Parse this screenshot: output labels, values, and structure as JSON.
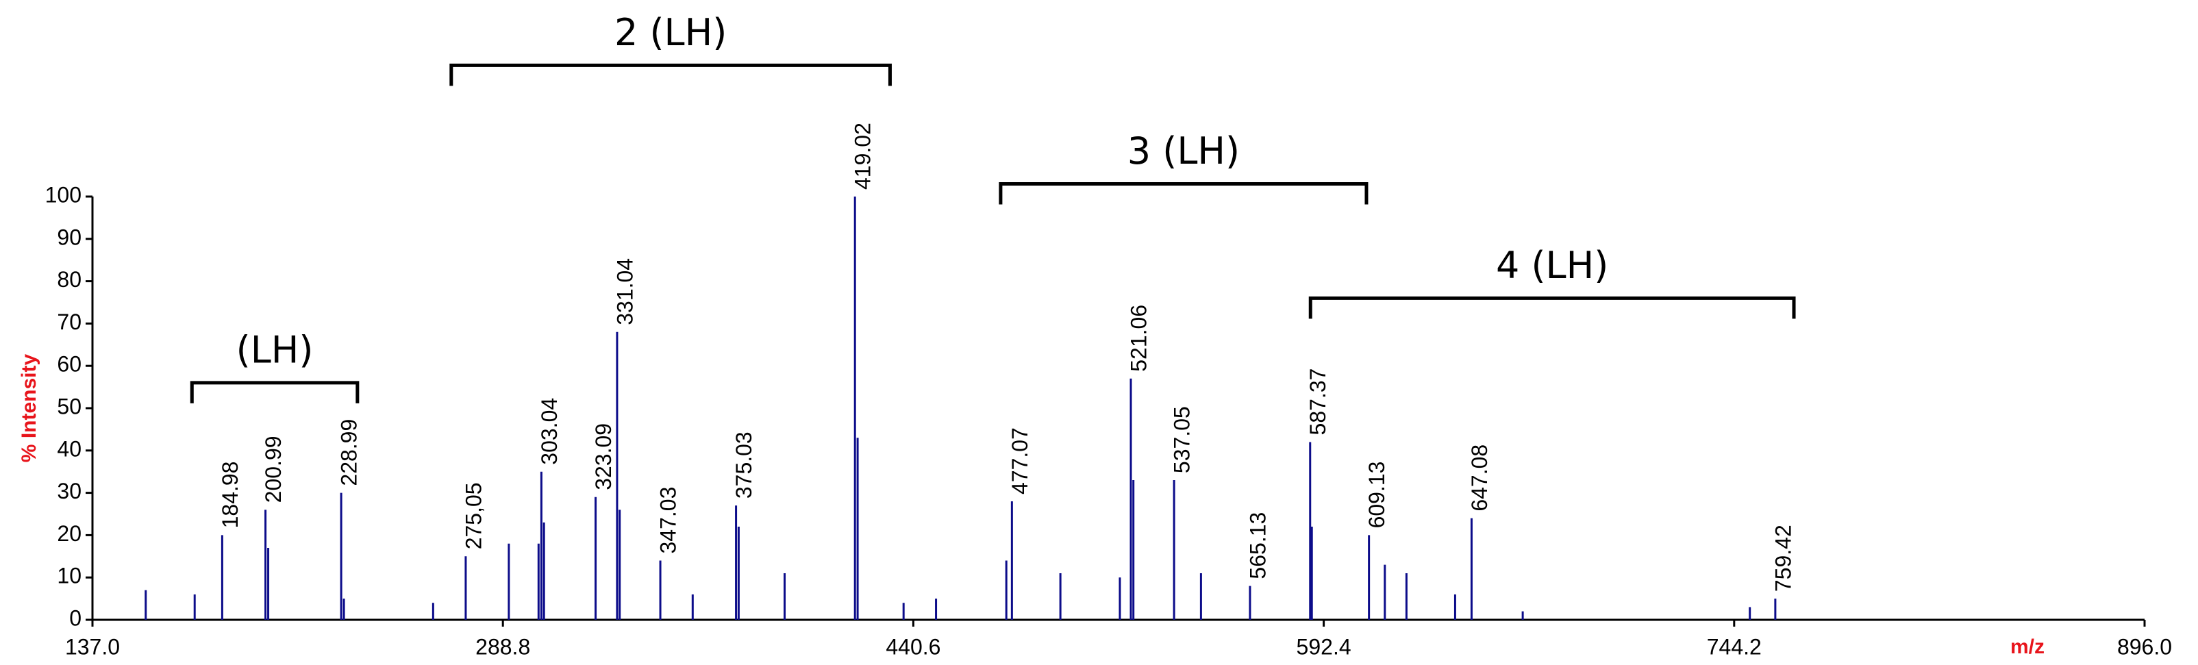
{
  "chart_data": {
    "type": "spectrum",
    "x_label": "m/z",
    "y_label": "% Intensity",
    "color": "#0c0c8a",
    "axis_label_color": "#e8141b",
    "grid": false,
    "xlim": [
      137.0,
      896.0
    ],
    "ylim": [
      0,
      100
    ],
    "xticks": [
      {
        "value": 137.0,
        "label": "137.0"
      },
      288.8,
      440.6,
      592.4,
      744.2,
      {
        "value": 896.0,
        "label": "896.0"
      }
    ],
    "yticks": [
      0,
      10,
      20,
      30,
      40,
      50,
      60,
      70,
      80,
      90,
      100
    ],
    "x": [
      156.7,
      174.8,
      184.98,
      200.99,
      202.0,
      228.99,
      230.0,
      263.0,
      275.05,
      291.0,
      302.0,
      303.04,
      304.0,
      323.09,
      331.04,
      332.0,
      347.03,
      359.0,
      375.03,
      376.0,
      393.0,
      419.02,
      420.0,
      437.0,
      449.0,
      475.0,
      477.07,
      495.0,
      517.0,
      521.06,
      522.0,
      537.05,
      547.0,
      565.13,
      587.37,
      588.0,
      609.13,
      615.0,
      623.0,
      641.0,
      647.08,
      666.0,
      750.0,
      759.42
    ],
    "values": [
      7,
      6,
      20,
      26,
      17,
      30,
      5,
      4,
      15,
      18,
      18,
      35,
      23,
      29,
      68,
      26,
      14,
      6,
      27,
      22,
      11,
      100,
      43,
      4,
      5,
      14,
      28,
      11,
      10,
      57,
      33,
      33,
      11,
      8,
      42,
      22,
      20,
      13,
      11,
      6,
      24,
      2,
      3,
      5
    ],
    "peak_labels": [
      184.98,
      200.99,
      228.99,
      {
        "value": 275.05,
        "label": "275,05"
      },
      303.04,
      323.09,
      331.04,
      347.03,
      375.03,
      419.02,
      477.07,
      521.06,
      537.05,
      565.13,
      587.37,
      609.13,
      647.08,
      759.42
    ],
    "annotations": [
      {
        "label": "(LH)",
        "x": [
          173.8,
          235.0
        ],
        "y": 56
      },
      {
        "label": "2 (LH)",
        "x": [
          269.7,
          432.0
        ],
        "y": 131
      },
      {
        "label": "3 (LH)",
        "x": [
          472.9,
          608.2
        ],
        "y": 103
      },
      {
        "label": "4 (LH)",
        "x": [
          587.5,
          766.3
        ],
        "y": 76
      }
    ]
  }
}
